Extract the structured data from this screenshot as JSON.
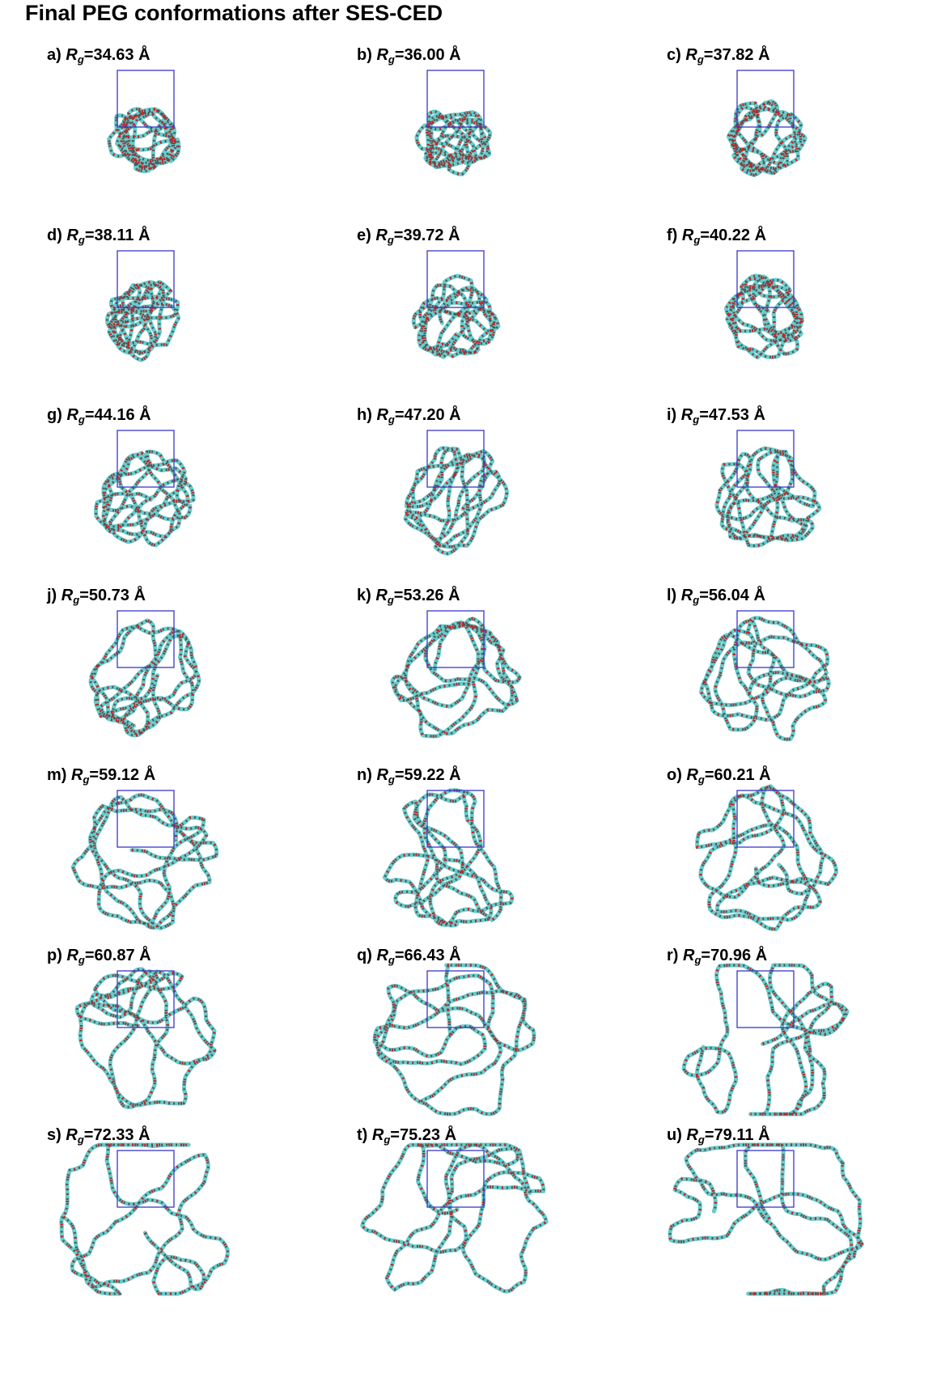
{
  "title": "Final PEG conformations after SES-CED",
  "rg_symbol": "R",
  "rg_subscript": "g",
  "unit": "Å",
  "colors": {
    "box": "#3a36c8",
    "chain": "#66cccc",
    "oxygen": "#cc2222",
    "carbon": "#555555"
  },
  "panels": [
    {
      "letter": "a)",
      "rg": "34.63"
    },
    {
      "letter": "b)",
      "rg": "36.00"
    },
    {
      "letter": "c)",
      "rg": "37.82"
    },
    {
      "letter": "d)",
      "rg": "38.11"
    },
    {
      "letter": "e)",
      "rg": "39.72"
    },
    {
      "letter": "f)",
      "rg": "40.22"
    },
    {
      "letter": "g)",
      "rg": "44.16"
    },
    {
      "letter": "h)",
      "rg": "47.20"
    },
    {
      "letter": "i)",
      "rg": "47.53"
    },
    {
      "letter": "j)",
      "rg": "50.73"
    },
    {
      "letter": "k)",
      "rg": "53.26"
    },
    {
      "letter": "l)",
      "rg": "56.04"
    },
    {
      "letter": "m)",
      "rg": "59.12"
    },
    {
      "letter": "n)",
      "rg": "59.22"
    },
    {
      "letter": "o)",
      "rg": "60.21"
    },
    {
      "letter": "p)",
      "rg": "60.87"
    },
    {
      "letter": "q)",
      "rg": "66.43"
    },
    {
      "letter": "r)",
      "rg": "70.96"
    },
    {
      "letter": "s)",
      "rg": "72.33"
    },
    {
      "letter": "t)",
      "rg": "75.23"
    },
    {
      "letter": "u)",
      "rg": "79.11"
    }
  ]
}
